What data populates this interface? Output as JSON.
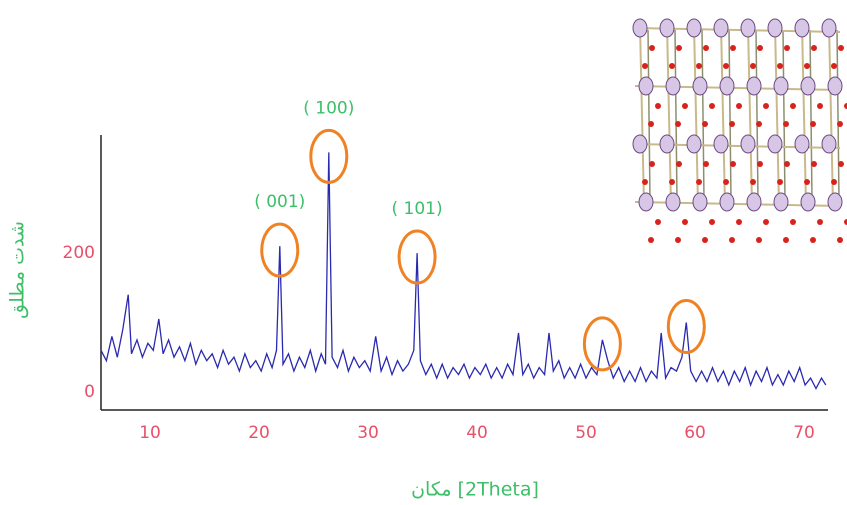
{
  "chart_data": {
    "type": "line",
    "x_label": "مکان [2Theta]",
    "y_label": "شدت مطلق",
    "x": [
      5.5,
      6,
      6.5,
      7,
      7.5,
      8,
      8.3,
      8.8,
      9.3,
      9.8,
      10.3,
      10.8,
      11.2,
      11.7,
      12.2,
      12.7,
      13.2,
      13.7,
      14.2,
      14.7,
      15.2,
      15.7,
      16.2,
      16.7,
      17.2,
      17.7,
      18.2,
      18.7,
      19.2,
      19.7,
      20.2,
      20.7,
      21.2,
      21.6,
      21.9,
      22.2,
      22.7,
      23.2,
      23.7,
      24.2,
      24.7,
      25.2,
      25.7,
      26.1,
      26.4,
      26.7,
      27.2,
      27.7,
      28.2,
      28.7,
      29.2,
      29.7,
      30.2,
      30.7,
      31.2,
      31.7,
      32.2,
      32.7,
      33.2,
      33.7,
      34.2,
      34.5,
      34.8,
      35.3,
      35.8,
      36.3,
      36.8,
      37.3,
      37.8,
      38.3,
      38.8,
      39.3,
      39.8,
      40.3,
      40.8,
      41.3,
      41.8,
      42.3,
      42.8,
      43.3,
      43.8,
      44.2,
      44.7,
      45.2,
      45.7,
      46.2,
      46.6,
      47,
      47.5,
      48,
      48.5,
      49,
      49.5,
      50,
      50.5,
      51,
      51.5,
      52,
      52.5,
      53,
      53.5,
      54,
      54.5,
      55,
      55.5,
      56,
      56.5,
      56.9,
      57.3,
      57.8,
      58.3,
      58.8,
      59.2,
      59.6,
      60.1,
      60.6,
      61.1,
      61.6,
      62.1,
      62.6,
      63.1,
      63.6,
      64.1,
      64.6,
      65.1,
      65.6,
      66.1,
      66.6,
      67.1,
      67.6,
      68.1,
      68.6,
      69.1,
      69.6,
      70.1,
      70.6,
      71.1,
      71.6,
      72
    ],
    "series": [
      {
        "color": "#2a2ab0",
        "values": [
          60,
          45,
          80,
          50,
          90,
          140,
          55,
          75,
          50,
          70,
          60,
          105,
          55,
          75,
          50,
          65,
          45,
          70,
          40,
          60,
          45,
          55,
          35,
          60,
          40,
          50,
          30,
          55,
          35,
          45,
          30,
          55,
          35,
          60,
          210,
          40,
          55,
          30,
          50,
          35,
          60,
          30,
          55,
          40,
          345,
          50,
          35,
          60,
          30,
          50,
          35,
          45,
          30,
          80,
          30,
          50,
          25,
          45,
          30,
          40,
          60,
          200,
          45,
          25,
          40,
          20,
          40,
          20,
          35,
          25,
          40,
          20,
          35,
          25,
          40,
          20,
          35,
          20,
          40,
          25,
          85,
          25,
          40,
          20,
          35,
          25,
          85,
          30,
          45,
          20,
          35,
          20,
          40,
          20,
          35,
          25,
          75,
          45,
          20,
          35,
          15,
          30,
          15,
          35,
          15,
          30,
          20,
          85,
          20,
          35,
          30,
          50,
          100,
          30,
          15,
          30,
          15,
          35,
          15,
          30,
          10,
          30,
          15,
          35,
          10,
          30,
          15,
          35,
          10,
          25,
          10,
          30,
          15,
          35,
          10,
          20,
          5,
          20,
          10
        ]
      }
    ],
    "peaks": [
      {
        "label": "( 001)",
        "x": 21.9,
        "y": 210
      },
      {
        "label": "( 100)",
        "x": 26.4,
        "y": 345
      },
      {
        "label": "( 101)",
        "x": 34.5,
        "y": 200
      },
      {
        "x": 51.5,
        "y": 75
      },
      {
        "x": 59.2,
        "y": 100
      }
    ],
    "peak_color": "#f08224",
    "xlim": [
      5.5,
      72.2
    ],
    "ylim": [
      -26,
      370
    ],
    "xticks": [
      10,
      20,
      30,
      40,
      50,
      60,
      70
    ],
    "yticks": [
      0,
      200
    ],
    "grid": false
  }
}
